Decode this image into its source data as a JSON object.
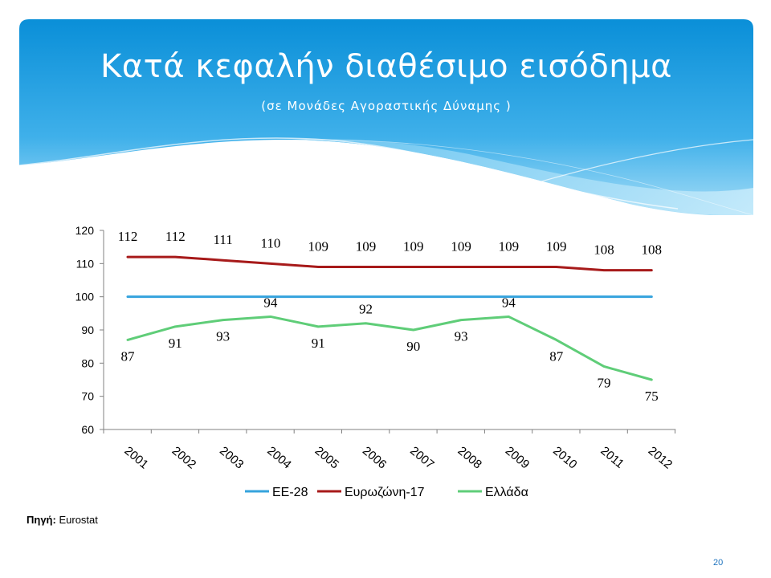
{
  "slide": {
    "title": "Κατά κεφαλήν διαθέσιμο εισόδημα",
    "subtitle": "(σε Μονάδες Αγοραστικής Δύναμης )",
    "source_label": "Πηγή:",
    "source_value": "Eurostat",
    "page_number": "20",
    "colors": {
      "banner_top": "#0a8fd8",
      "banner_bottom": "#8fd3f5",
      "text": "#ffffff"
    }
  },
  "chart_data": {
    "type": "line",
    "categories": [
      "2001",
      "2002",
      "2003",
      "2004",
      "2005",
      "2006",
      "2007",
      "2008",
      "2009",
      "2010",
      "2011",
      "2012"
    ],
    "ylim": [
      60,
      120
    ],
    "yticks": [
      60,
      70,
      80,
      90,
      100,
      110,
      120
    ],
    "grid": false,
    "legend": "bottom",
    "series": [
      {
        "name": "ΕΕ-28",
        "color": "#35a3dd",
        "values": [
          100,
          100,
          100,
          100,
          100,
          100,
          100,
          100,
          100,
          100,
          100,
          100
        ],
        "labels": false
      },
      {
        "name": "Ευρωζώνη-17",
        "color": "#a71a1a",
        "values": [
          112,
          112,
          111,
          110,
          109,
          109,
          109,
          109,
          109,
          109,
          108,
          108
        ],
        "labels": true
      },
      {
        "name": "Ελλάδα",
        "color": "#5fcd78",
        "values": [
          87,
          91,
          93,
          94,
          91,
          92,
          90,
          93,
          94,
          87,
          79,
          75
        ],
        "labels": true
      }
    ]
  }
}
